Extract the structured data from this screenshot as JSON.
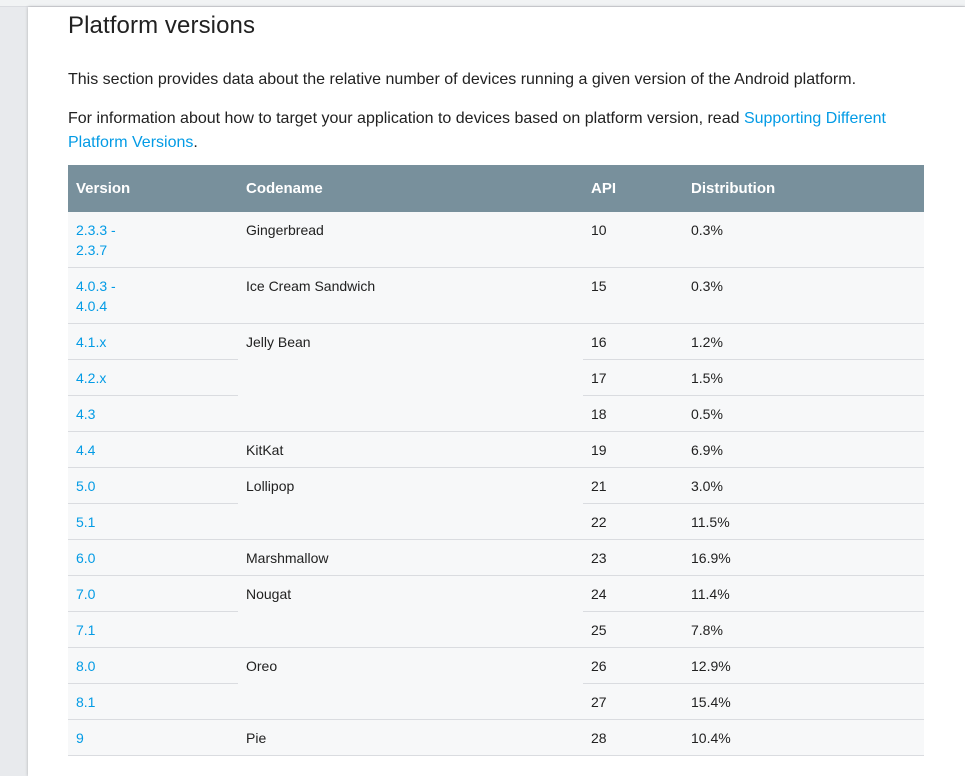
{
  "section": {
    "title": "Platform versions",
    "intro": "This section provides data about the relative number of devices running a given version of the Android platform.",
    "info_prefix": "For information about how to target your application to devices based on platform version, read ",
    "info_link": "Supporting Different Platform Versions",
    "info_suffix": "."
  },
  "table": {
    "headers": {
      "version": "Version",
      "codename": "Codename",
      "api": "API",
      "distribution": "Distribution"
    },
    "rows": [
      {
        "version": "2.3.3 - 2.3.7",
        "codename": "Gingerbread",
        "api": "10",
        "distribution": "0.3%"
      },
      {
        "version": "4.0.3 - 4.0.4",
        "codename": "Ice Cream Sandwich",
        "api": "15",
        "distribution": "0.3%"
      },
      {
        "version": "4.1.x",
        "codename": "Jelly Bean",
        "api": "16",
        "distribution": "1.2%"
      },
      {
        "version": "4.2.x",
        "codename": "",
        "api": "17",
        "distribution": "1.5%"
      },
      {
        "version": "4.3",
        "codename": "",
        "api": "18",
        "distribution": "0.5%"
      },
      {
        "version": "4.4",
        "codename": "KitKat",
        "api": "19",
        "distribution": "6.9%"
      },
      {
        "version": "5.0",
        "codename": "Lollipop",
        "api": "21",
        "distribution": "3.0%"
      },
      {
        "version": "5.1",
        "codename": "",
        "api": "22",
        "distribution": "11.5%"
      },
      {
        "version": "6.0",
        "codename": "Marshmallow",
        "api": "23",
        "distribution": "16.9%"
      },
      {
        "version": "7.0",
        "codename": "Nougat",
        "api": "24",
        "distribution": "11.4%"
      },
      {
        "version": "7.1",
        "codename": "",
        "api": "25",
        "distribution": "7.8%"
      },
      {
        "version": "8.0",
        "codename": "Oreo",
        "api": "26",
        "distribution": "12.9%"
      },
      {
        "version": "8.1",
        "codename": "",
        "api": "27",
        "distribution": "15.4%"
      },
      {
        "version": "9",
        "codename": "Pie",
        "api": "28",
        "distribution": "10.4%"
      }
    ]
  },
  "colors": {
    "header_bg": "#78909c",
    "link": "#039be5",
    "row_bg": "#f7f8f9"
  }
}
